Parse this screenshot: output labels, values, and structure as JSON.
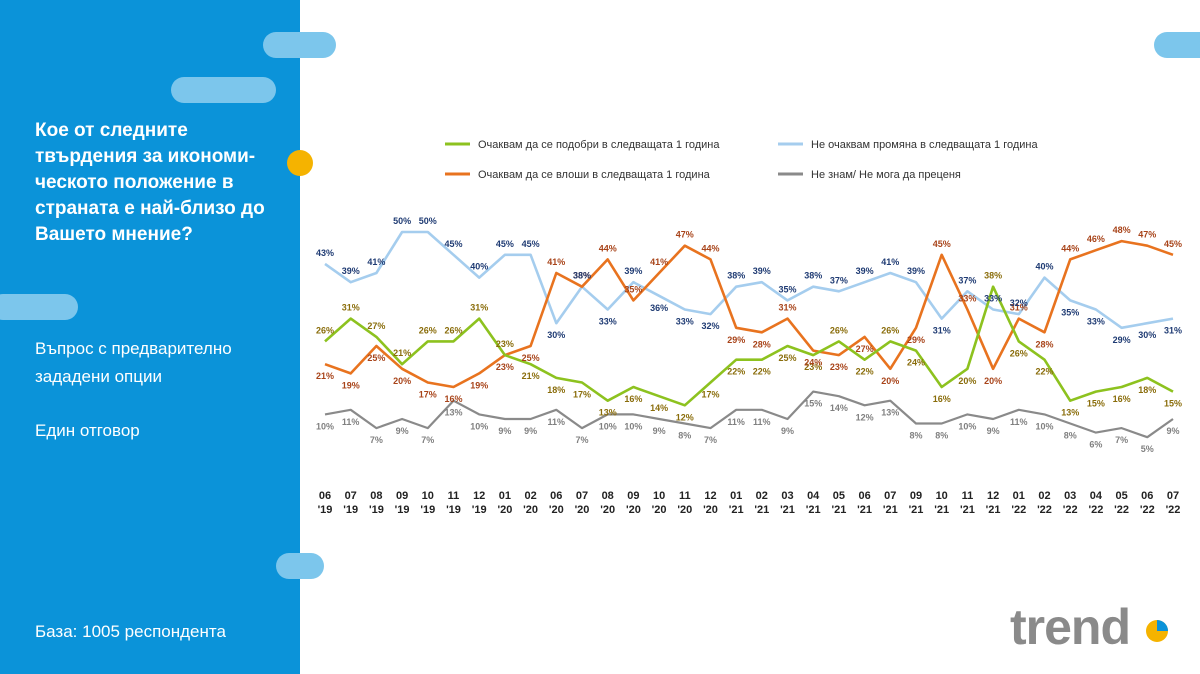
{
  "sidebar": {
    "question": "Кое от следните твърдения за икономи-ческото положение в страната е най-близо до Вашето мнение?",
    "note1": "Въпрос с предварително зададени опции",
    "note2": "Един отговор",
    "base": "База:  1005 респондента"
  },
  "brand": {
    "logo_text": "trend"
  },
  "colors": {
    "sidebar": "#0b93d9",
    "pill": "#7cc6ec",
    "dot": "#f5b300"
  },
  "chart_data": {
    "type": "line",
    "title": "",
    "xlabel": "",
    "ylabel": "",
    "categories": [
      "06 '19",
      "07 '19",
      "08 '19",
      "09 '19",
      "10 '19",
      "11 '19",
      "12 '19",
      "01 '20",
      "02 '20",
      "06 '20",
      "07 '20",
      "08 '20",
      "09 '20",
      "10 '20",
      "11 '20",
      "12 '20",
      "01 '21",
      "02 '21",
      "03 '21",
      "04 '21",
      "05 '21",
      "06 '21",
      "07 '21",
      "09 '21",
      "10 '21",
      "11 '21",
      "12 '21",
      "01 '22",
      "02 '22",
      "03 '22",
      "04 '22",
      "05 '22",
      "06 '22",
      "07 '22"
    ],
    "ylim": [
      0,
      55
    ],
    "grid": false,
    "legend_position": "top",
    "series": [
      {
        "name": "Очаквам да се подобри в следващата 1 година",
        "color": "#8dc21f",
        "label_color": "#8a6d0b",
        "values": [
          26,
          31,
          27,
          21,
          26,
          26,
          31,
          23,
          21,
          18,
          17,
          13,
          16,
          14,
          12,
          17,
          22,
          22,
          25,
          23,
          26,
          22,
          26,
          24,
          16,
          20,
          38,
          26,
          22,
          13,
          15,
          16,
          18,
          15
        ]
      },
      {
        "name": "Очаквам да се влоши в следващата 1 година",
        "color": "#e8731f",
        "label_color": "#a8441a",
        "values": [
          21,
          19,
          25,
          20,
          17,
          16,
          19,
          23,
          25,
          41,
          38,
          44,
          35,
          41,
          47,
          44,
          29,
          28,
          31,
          24,
          23,
          27,
          20,
          29,
          45,
          33,
          20,
          31,
          28,
          44,
          46,
          48,
          47,
          45
        ]
      },
      {
        "name": "Не очаквам промяна в следващата 1 година",
        "color": "#a5cdee",
        "label_color": "#1f3b73",
        "values": [
          43,
          39,
          41,
          50,
          50,
          45,
          40,
          45,
          45,
          30,
          38,
          33,
          39,
          36,
          33,
          32,
          38,
          39,
          35,
          38,
          37,
          39,
          41,
          39,
          31,
          37,
          33,
          32,
          40,
          35,
          33,
          29,
          30,
          31
        ]
      },
      {
        "name": "Не знам/ Не мога да преценя",
        "color": "#8a8a8a",
        "label_color": "#808080",
        "values": [
          10,
          11,
          7,
          9,
          7,
          13,
          10,
          9,
          9,
          11,
          7,
          10,
          10,
          9,
          8,
          7,
          11,
          11,
          9,
          15,
          14,
          12,
          13,
          8,
          8,
          10,
          9,
          11,
          10,
          8,
          6,
          7,
          5,
          9
        ]
      }
    ]
  }
}
